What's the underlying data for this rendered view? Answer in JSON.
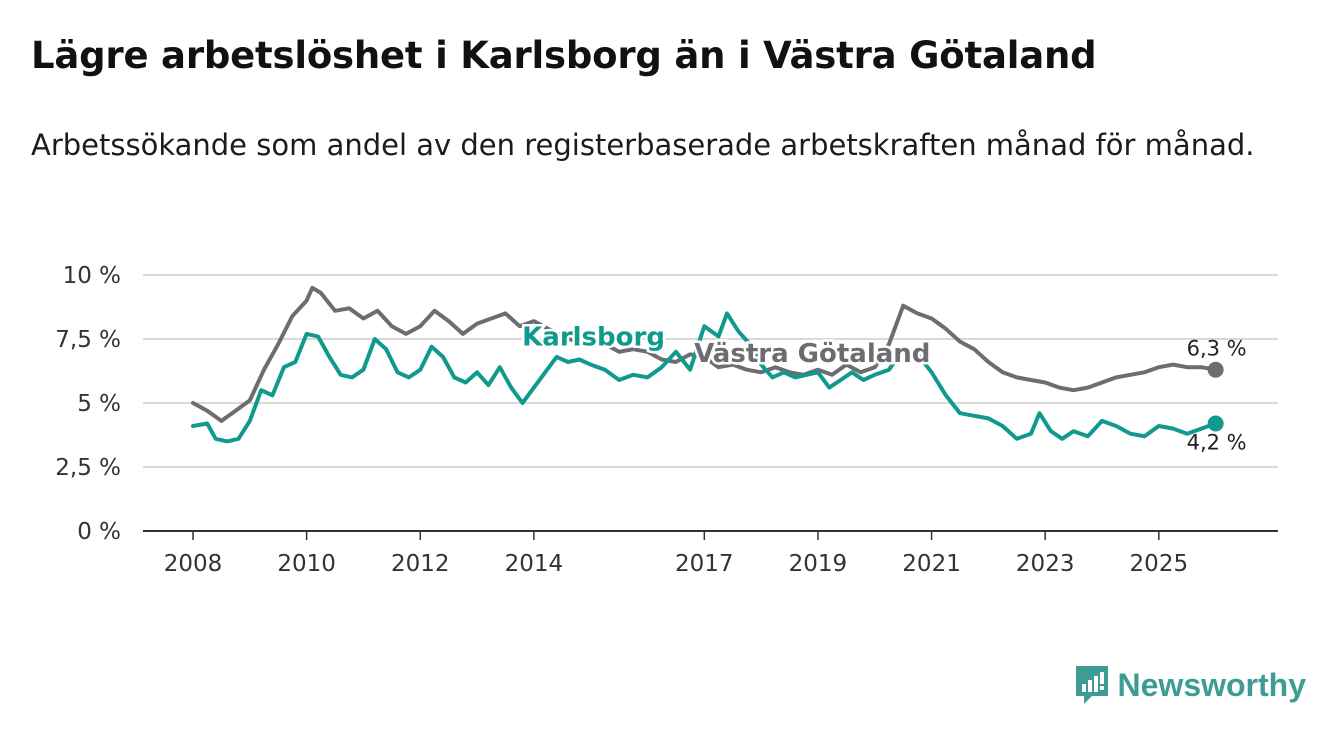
{
  "title": "Lägre arbetslöshet i Karlsborg än i Västra Götaland",
  "subtitle": "Arbetssökande som andel av den registerbaserade arbetskraften månad för månad.",
  "brand": {
    "name": "Newsworthy",
    "icon": "newsworthy-logo-icon",
    "color": "#3d9d94"
  },
  "chart_data": {
    "type": "line",
    "title": "Lägre arbetslöshet i Karlsborg än i Västra Götaland",
    "ylim": [
      0,
      10
    ],
    "xlim": [
      2008,
      2026.2
    ],
    "y_ticks": [
      0,
      2.5,
      5,
      7.5,
      10
    ],
    "y_tick_labels": [
      "0 %",
      "2,5 %",
      "5 %",
      "7,5 %",
      "10 %"
    ],
    "x_ticks": [
      2008,
      2010,
      2012,
      2014,
      2017,
      2019,
      2021,
      2023,
      2025
    ],
    "x_tick_labels": [
      "2008",
      "2010",
      "2012",
      "2014",
      "2017",
      "2019",
      "2021",
      "2023",
      "2025"
    ],
    "grid": true,
    "series": [
      {
        "name": "Västra Götaland",
        "color": "#6d6c70",
        "end_label": "6,3 %",
        "points": [
          [
            2008.0,
            5.0
          ],
          [
            2008.25,
            4.7
          ],
          [
            2008.5,
            4.3
          ],
          [
            2008.75,
            4.7
          ],
          [
            2009.0,
            5.1
          ],
          [
            2009.25,
            6.3
          ],
          [
            2009.5,
            7.3
          ],
          [
            2009.75,
            8.4
          ],
          [
            2010.0,
            9.0
          ],
          [
            2010.1,
            9.5
          ],
          [
            2010.25,
            9.3
          ],
          [
            2010.5,
            8.6
          ],
          [
            2010.75,
            8.7
          ],
          [
            2011.0,
            8.3
          ],
          [
            2011.25,
            8.6
          ],
          [
            2011.5,
            8.0
          ],
          [
            2011.75,
            7.7
          ],
          [
            2012.0,
            8.0
          ],
          [
            2012.25,
            8.6
          ],
          [
            2012.5,
            8.2
          ],
          [
            2012.75,
            7.7
          ],
          [
            2013.0,
            8.1
          ],
          [
            2013.25,
            8.3
          ],
          [
            2013.5,
            8.5
          ],
          [
            2013.75,
            8.0
          ],
          [
            2014.0,
            8.2
          ],
          [
            2014.25,
            7.9
          ],
          [
            2014.5,
            7.6
          ],
          [
            2014.75,
            7.4
          ],
          [
            2015.0,
            7.5
          ],
          [
            2015.25,
            7.3
          ],
          [
            2015.5,
            7.0
          ],
          [
            2015.75,
            7.1
          ],
          [
            2016.0,
            7.0
          ],
          [
            2016.25,
            6.7
          ],
          [
            2016.5,
            6.6
          ],
          [
            2016.75,
            6.9
          ],
          [
            2017.0,
            6.8
          ],
          [
            2017.25,
            6.4
          ],
          [
            2017.5,
            6.5
          ],
          [
            2017.75,
            6.3
          ],
          [
            2018.0,
            6.2
          ],
          [
            2018.25,
            6.4
          ],
          [
            2018.5,
            6.2
          ],
          [
            2018.75,
            6.1
          ],
          [
            2019.0,
            6.3
          ],
          [
            2019.25,
            6.1
          ],
          [
            2019.5,
            6.5
          ],
          [
            2019.75,
            6.2
          ],
          [
            2020.0,
            6.4
          ],
          [
            2020.25,
            7.3
          ],
          [
            2020.5,
            8.8
          ],
          [
            2020.75,
            8.5
          ],
          [
            2021.0,
            8.3
          ],
          [
            2021.25,
            7.9
          ],
          [
            2021.5,
            7.4
          ],
          [
            2021.75,
            7.1
          ],
          [
            2022.0,
            6.6
          ],
          [
            2022.25,
            6.2
          ],
          [
            2022.5,
            6.0
          ],
          [
            2022.75,
            5.9
          ],
          [
            2023.0,
            5.8
          ],
          [
            2023.25,
            5.6
          ],
          [
            2023.5,
            5.5
          ],
          [
            2023.75,
            5.6
          ],
          [
            2024.0,
            5.8
          ],
          [
            2024.25,
            6.0
          ],
          [
            2024.5,
            6.1
          ],
          [
            2024.75,
            6.2
          ],
          [
            2025.0,
            6.4
          ],
          [
            2025.25,
            6.5
          ],
          [
            2025.5,
            6.4
          ],
          [
            2025.75,
            6.4
          ],
          [
            2026.0,
            6.3
          ]
        ]
      },
      {
        "name": "Karlsborg",
        "color": "#0f9a8d",
        "end_label": "4,2 %",
        "points": [
          [
            2008.0,
            4.1
          ],
          [
            2008.25,
            4.2
          ],
          [
            2008.4,
            3.6
          ],
          [
            2008.6,
            3.5
          ],
          [
            2008.8,
            3.6
          ],
          [
            2009.0,
            4.3
          ],
          [
            2009.2,
            5.5
          ],
          [
            2009.4,
            5.3
          ],
          [
            2009.6,
            6.4
          ],
          [
            2009.8,
            6.6
          ],
          [
            2010.0,
            7.7
          ],
          [
            2010.2,
            7.6
          ],
          [
            2010.4,
            6.8
          ],
          [
            2010.6,
            6.1
          ],
          [
            2010.8,
            6.0
          ],
          [
            2011.0,
            6.3
          ],
          [
            2011.2,
            7.5
          ],
          [
            2011.4,
            7.1
          ],
          [
            2011.6,
            6.2
          ],
          [
            2011.8,
            6.0
          ],
          [
            2012.0,
            6.3
          ],
          [
            2012.2,
            7.2
          ],
          [
            2012.4,
            6.8
          ],
          [
            2012.6,
            6.0
          ],
          [
            2012.8,
            5.8
          ],
          [
            2013.0,
            6.2
          ],
          [
            2013.2,
            5.7
          ],
          [
            2013.4,
            6.4
          ],
          [
            2013.6,
            5.6
          ],
          [
            2013.8,
            5.0
          ],
          [
            2014.0,
            5.6
          ],
          [
            2014.2,
            6.2
          ],
          [
            2014.4,
            6.8
          ],
          [
            2014.6,
            6.6
          ],
          [
            2014.8,
            6.7
          ],
          [
            2015.0,
            6.5
          ],
          [
            2015.25,
            6.3
          ],
          [
            2015.5,
            5.9
          ],
          [
            2015.75,
            6.1
          ],
          [
            2016.0,
            6.0
          ],
          [
            2016.25,
            6.4
          ],
          [
            2016.5,
            7.0
          ],
          [
            2016.75,
            6.3
          ],
          [
            2017.0,
            8.0
          ],
          [
            2017.25,
            7.6
          ],
          [
            2017.4,
            8.5
          ],
          [
            2017.6,
            7.8
          ],
          [
            2017.8,
            7.3
          ],
          [
            2018.0,
            6.5
          ],
          [
            2018.2,
            6.0
          ],
          [
            2018.4,
            6.2
          ],
          [
            2018.6,
            6.0
          ],
          [
            2018.8,
            6.1
          ],
          [
            2019.0,
            6.2
          ],
          [
            2019.2,
            5.6
          ],
          [
            2019.4,
            5.9
          ],
          [
            2019.6,
            6.2
          ],
          [
            2019.8,
            5.9
          ],
          [
            2020.0,
            6.1
          ],
          [
            2020.25,
            6.3
          ],
          [
            2020.5,
            7.1
          ],
          [
            2020.75,
            6.9
          ],
          [
            2021.0,
            6.2
          ],
          [
            2021.25,
            5.3
          ],
          [
            2021.5,
            4.6
          ],
          [
            2021.75,
            4.5
          ],
          [
            2022.0,
            4.4
          ],
          [
            2022.25,
            4.1
          ],
          [
            2022.5,
            3.6
          ],
          [
            2022.75,
            3.8
          ],
          [
            2022.9,
            4.6
          ],
          [
            2023.1,
            3.9
          ],
          [
            2023.3,
            3.6
          ],
          [
            2023.5,
            3.9
          ],
          [
            2023.75,
            3.7
          ],
          [
            2024.0,
            4.3
          ],
          [
            2024.25,
            4.1
          ],
          [
            2024.5,
            3.8
          ],
          [
            2024.75,
            3.7
          ],
          [
            2025.0,
            4.1
          ],
          [
            2025.25,
            4.0
          ],
          [
            2025.5,
            3.8
          ],
          [
            2025.75,
            4.0
          ],
          [
            2026.0,
            4.2
          ]
        ]
      }
    ],
    "annotations": [
      {
        "text": "Karlsborg",
        "series": "Karlsborg",
        "at": [
          2015.05,
          7.25
        ]
      },
      {
        "text": "Västra Götaland",
        "series": "Västra Götaland",
        "at": [
          2018.9,
          6.6
        ]
      }
    ]
  }
}
